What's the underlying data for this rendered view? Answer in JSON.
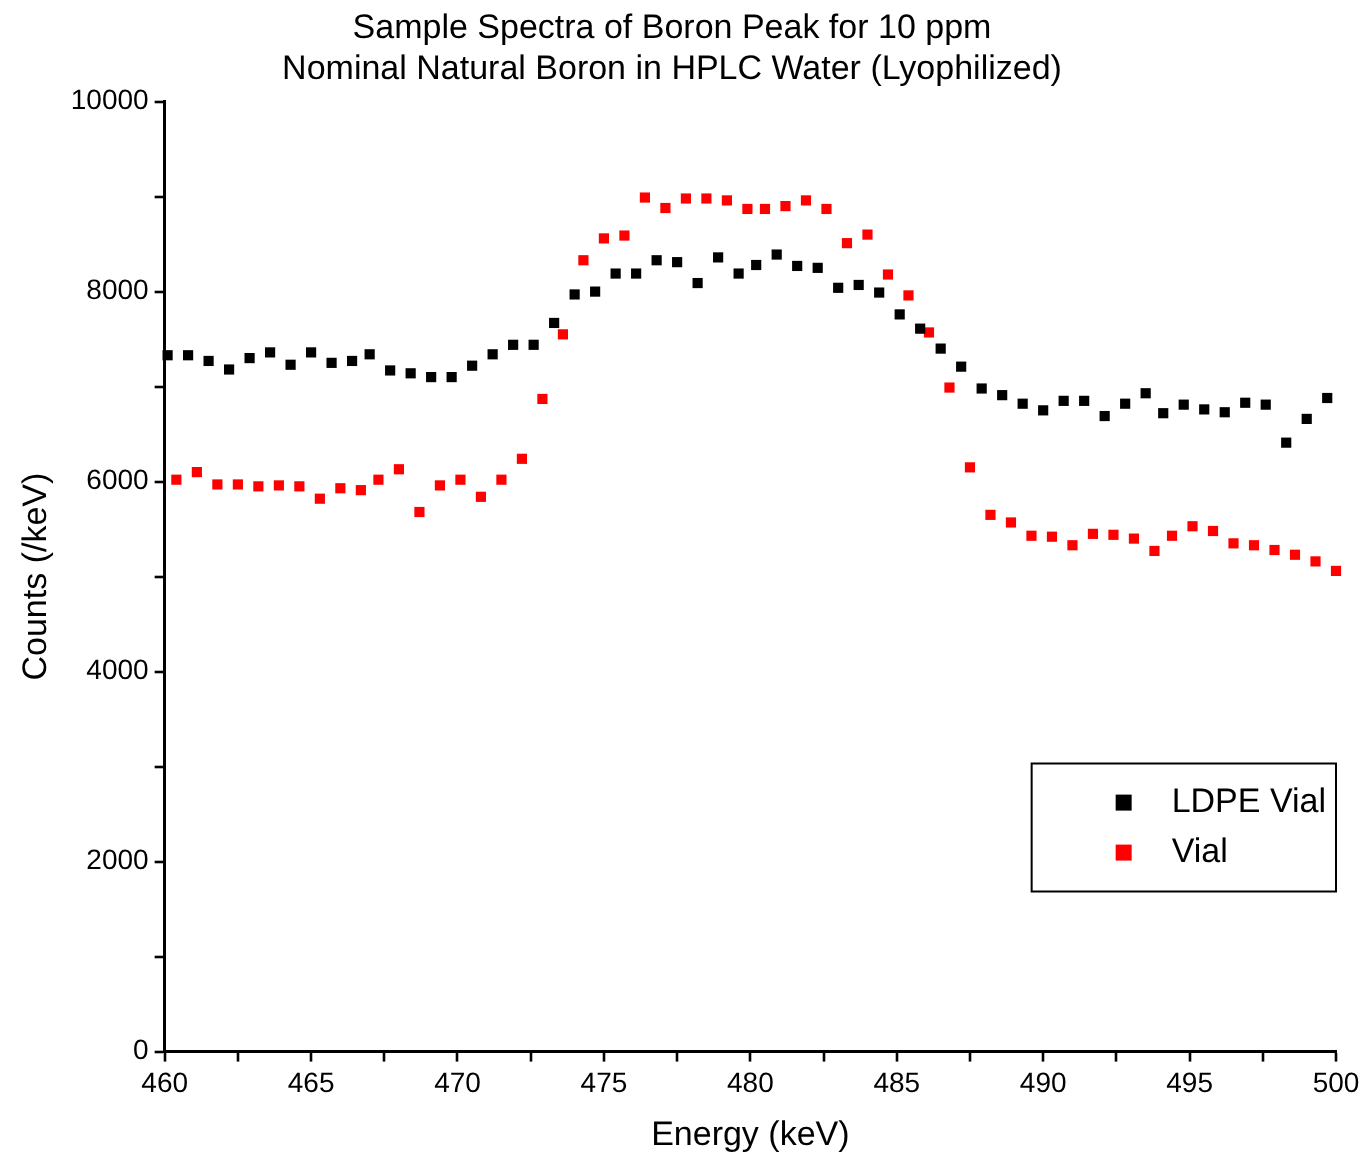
{
  "chart_data": {
    "type": "scatter",
    "title": "Sample Spectra of Boron Peak for 10 ppm\nNominal Natural Boron in HPLC Water (Lyophilized)",
    "xlabel": "Energy (keV)",
    "ylabel": "Counts (/keV)",
    "xlim": [
      460,
      500
    ],
    "xticks": [
      460,
      {
        "value": 462.5,
        "label": null
      },
      465,
      {
        "value": 467.5,
        "label": null
      },
      470,
      {
        "value": 472.5,
        "label": null
      },
      475,
      {
        "value": 477.5,
        "label": null
      },
      480,
      {
        "value": 482.5,
        "label": null
      },
      485,
      {
        "value": 487.5,
        "label": null
      },
      490,
      {
        "value": 492.5,
        "label": null
      },
      495,
      {
        "value": 497.5,
        "label": null
      },
      500
    ],
    "ylim": [
      0,
      10000
    ],
    "yticks": [
      0,
      {
        "value": 1000,
        "label": null
      },
      2000,
      {
        "value": 3000,
        "label": null
      },
      4000,
      {
        "value": 5000,
        "label": null
      },
      6000,
      {
        "value": 7000,
        "label": null
      },
      8000,
      {
        "value": 9000,
        "label": null
      },
      10000
    ],
    "grid": false,
    "legend": "bottom right",
    "marker": "square",
    "series": [
      {
        "name": "LDPE Vial",
        "color": "#000000",
        "x": [
          460.1,
          460.8,
          461.5,
          462.2,
          462.9,
          463.6,
          464.3,
          465.0,
          465.7,
          466.4,
          467.0,
          467.7,
          468.4,
          469.1,
          469.8,
          470.5,
          471.2,
          471.9,
          472.6,
          473.3,
          474.0,
          474.7,
          475.4,
          476.1,
          476.8,
          477.5,
          478.2,
          478.9,
          479.6,
          480.2,
          480.9,
          481.6,
          482.3,
          483.0,
          483.7,
          484.4,
          485.1,
          485.8,
          486.5,
          487.2,
          487.9,
          488.6,
          489.3,
          490.0,
          490.7,
          491.4,
          492.1,
          492.8,
          493.5,
          494.1,
          494.8,
          495.5,
          496.2,
          496.9,
          497.6,
          498.3,
          499.0,
          499.7
        ],
        "values": [
          7330,
          7330,
          7270,
          7180,
          7300,
          7360,
          7230,
          7360,
          7250,
          7270,
          7340,
          7170,
          7140,
          7100,
          7100,
          7220,
          7340,
          7440,
          7440,
          7670,
          7970,
          8000,
          8190,
          8190,
          8330,
          8310,
          8090,
          8360,
          8190,
          8280,
          8390,
          8270,
          8250,
          8040,
          8070,
          7990,
          7760,
          7610,
          7400,
          7210,
          6980,
          6910,
          6820,
          6750,
          6850,
          6850,
          6690,
          6820,
          6930,
          6720,
          6810,
          6760,
          6730,
          6830,
          6810,
          6410,
          6660,
          6880
        ]
      },
      {
        "name": "Vial",
        "color": "#ff0000",
        "x": [
          460.4,
          461.1,
          461.8,
          462.5,
          463.2,
          463.9,
          464.6,
          465.3,
          466.0,
          466.7,
          467.3,
          468.0,
          468.7,
          469.4,
          470.1,
          470.8,
          471.5,
          472.2,
          472.9,
          473.6,
          474.3,
          475.0,
          475.7,
          476.4,
          477.1,
          477.8,
          478.5,
          479.2,
          479.9,
          480.5,
          481.2,
          481.9,
          482.6,
          483.3,
          484.0,
          484.7,
          485.4,
          486.1,
          486.8,
          487.5,
          488.2,
          488.9,
          489.6,
          490.3,
          491.0,
          491.7,
          492.4,
          493.1,
          493.8,
          494.4,
          495.1,
          495.8,
          496.5,
          497.2,
          497.9,
          498.6,
          499.3,
          500.0
        ],
        "values": [
          6020,
          6100,
          5970,
          5970,
          5950,
          5960,
          5950,
          5820,
          5930,
          5910,
          6020,
          6130,
          5680,
          5960,
          6020,
          5840,
          6020,
          6240,
          6870,
          7550,
          8330,
          8560,
          8590,
          8990,
          8880,
          8980,
          8980,
          8960,
          8870,
          8870,
          8900,
          8960,
          8870,
          8510,
          8600,
          8180,
          7960,
          7570,
          6990,
          6150,
          5650,
          5570,
          5430,
          5420,
          5330,
          5450,
          5440,
          5400,
          5270,
          5430,
          5530,
          5480,
          5350,
          5330,
          5280,
          5230,
          5160,
          5060
        ]
      }
    ]
  }
}
